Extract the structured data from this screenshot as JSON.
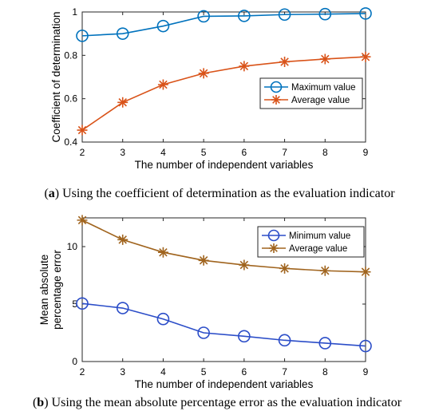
{
  "chart_data": [
    {
      "type": "line",
      "x": [
        2,
        3,
        4,
        5,
        6,
        7,
        8,
        9
      ],
      "xlim": [
        2,
        9
      ],
      "ylim": [
        0.4,
        1.0
      ],
      "xticks": [
        "2",
        "3",
        "4",
        "5",
        "6",
        "7",
        "8",
        "9"
      ],
      "yticks": [
        "0.4",
        "0.6",
        "0.8",
        "1"
      ],
      "ytick_values": [
        0.4,
        0.6,
        0.8,
        1.0
      ],
      "xlabel": "The number of independent variables",
      "ylabel": "Coefficient of determination",
      "legend_position": "middle-right",
      "grid": false,
      "caption_label": "a",
      "caption_text": ") Using the coefficient of determination as the evaluation indicator",
      "series": [
        {
          "name": "Maximum value",
          "marker": "circle",
          "color": "#0072BD",
          "values": [
            0.89,
            0.9,
            0.935,
            0.98,
            0.982,
            0.988,
            0.99,
            0.993
          ]
        },
        {
          "name": "Average value",
          "marker": "star",
          "color": "#D95319",
          "values": [
            0.455,
            0.583,
            0.665,
            0.717,
            0.75,
            0.77,
            0.783,
            0.793
          ]
        }
      ]
    },
    {
      "type": "line",
      "x": [
        2,
        3,
        4,
        5,
        6,
        7,
        8,
        9
      ],
      "xlim": [
        2,
        9
      ],
      "ylim": [
        0,
        12.5
      ],
      "xticks": [
        "2",
        "3",
        "4",
        "5",
        "6",
        "7",
        "8",
        "9"
      ],
      "yticks": [
        "0",
        "5",
        "10"
      ],
      "ytick_values": [
        0,
        5,
        10
      ],
      "xlabel": "The number of independent variables",
      "ylabel": [
        "Mean absolute",
        "percentage error"
      ],
      "legend_position": "top-right",
      "grid": false,
      "caption_label": "b",
      "caption_text": ") Using the mean absolute percentage error as the evaluation indicator",
      "series": [
        {
          "name": "Minimum value",
          "marker": "circle",
          "color": "#2B4DC8",
          "values": [
            5.05,
            4.65,
            3.7,
            2.5,
            2.2,
            1.85,
            1.6,
            1.35
          ]
        },
        {
          "name": "Average value",
          "marker": "star",
          "color": "#A0641E",
          "values": [
            12.3,
            10.6,
            9.5,
            8.8,
            8.4,
            8.1,
            7.9,
            7.8
          ]
        }
      ]
    }
  ]
}
